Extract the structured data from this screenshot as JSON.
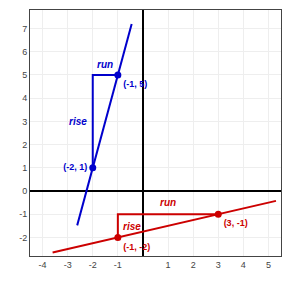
{
  "chart_data": {
    "type": "line",
    "xlim": [
      -4.5,
      5.5
    ],
    "ylim": [
      -2.8,
      7.8
    ],
    "xticks": [
      -4,
      -3,
      -2,
      -1,
      1,
      2,
      3,
      4,
      5
    ],
    "yticks": [
      -2,
      -1,
      0,
      1,
      2,
      3,
      4,
      5,
      6,
      7
    ],
    "grid": true,
    "series": [
      {
        "type": "line",
        "color": "#0000cc",
        "x": [
          -2.62,
          -0.45
        ],
        "values": [
          -1.48,
          7.2
        ]
      },
      {
        "type": "line",
        "color": "#cc0000",
        "x": [
          -3.6,
          5.3
        ],
        "values": [
          -2.65,
          -0.425
        ]
      },
      {
        "type": "line",
        "color": "#0000cc",
        "x": [
          -2,
          -2,
          -1
        ],
        "values": [
          1,
          5,
          5
        ]
      },
      {
        "type": "line",
        "color": "#cc0000",
        "x": [
          -1,
          -1,
          3
        ],
        "values": [
          -2,
          -1,
          -1
        ]
      },
      {
        "type": "scatter",
        "color": "#0000cc",
        "x": [
          -2,
          -1
        ],
        "values": [
          1,
          5
        ],
        "value_labels": [
          "(-2, 1)",
          "(-1, 5)"
        ],
        "data_labels": true
      },
      {
        "type": "scatter",
        "color": "#cc0000",
        "x": [
          -1,
          3
        ],
        "values": [
          -2,
          -1
        ],
        "value_labels": [
          "(-1, -2)",
          "(3, -1)"
        ],
        "data_labels": true
      }
    ],
    "annotations": [
      {
        "text": "rise",
        "x": -2.15,
        "y": 3.0,
        "color": "#0000cc"
      },
      {
        "text": "run",
        "x": -1.5,
        "y": 5.15,
        "color": "#0000cc"
      },
      {
        "text": "rise",
        "x": -0.88,
        "y": -1.55,
        "color": "#cc0000"
      },
      {
        "text": "run",
        "x": 1.0,
        "y": -0.82,
        "color": "#cc0000"
      }
    ]
  }
}
